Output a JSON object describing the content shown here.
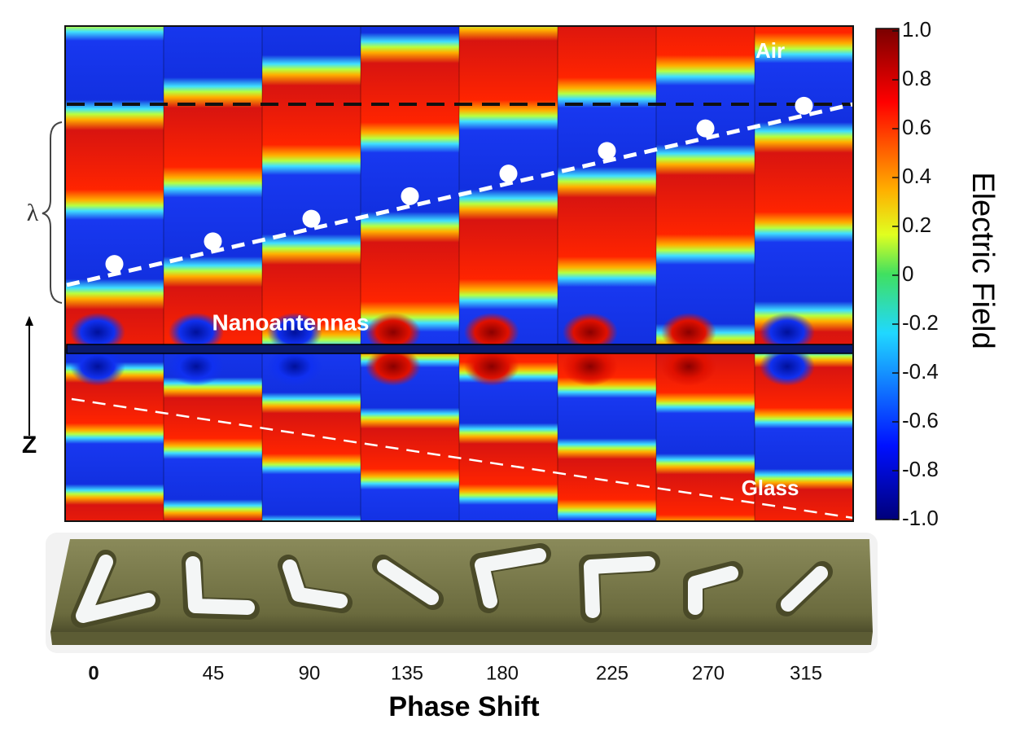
{
  "field_map": {
    "air_label": "Air",
    "antenna_label": "Nanoantennas",
    "glass_label": "Glass",
    "wavelength_label": "λ",
    "axis_label": "Z"
  },
  "colorbar": {
    "label": "Electric Field",
    "ticks": [
      {
        "value": 1,
        "label": "1.0"
      },
      0.8,
      0.6,
      0.4,
      0.2,
      0,
      -0.2,
      -0.4,
      -0.6,
      -0.8,
      {
        "value": -1,
        "label": "-1.0"
      }
    ]
  },
  "phase_shift": {
    "title": "Phase Shift",
    "values": [
      0,
      45,
      90,
      135,
      180,
      225,
      270,
      315
    ]
  }
}
